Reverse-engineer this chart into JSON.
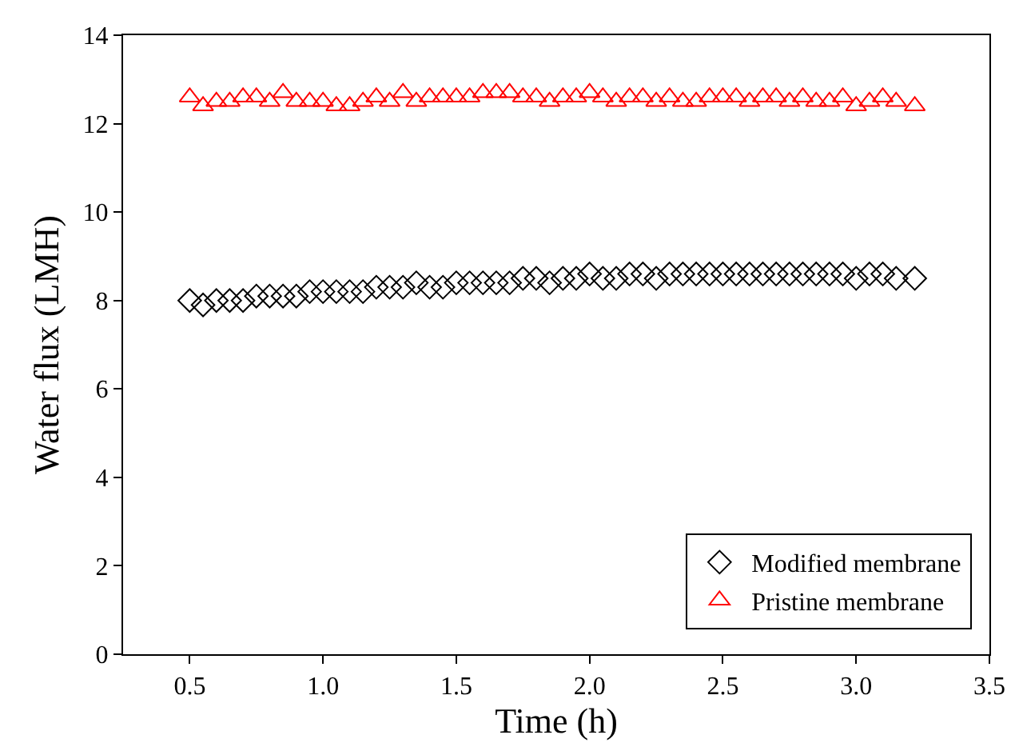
{
  "chart_data": {
    "type": "scatter",
    "xlabel": "Time (h)",
    "ylabel": "Water flux (LMH)",
    "x": [
      0.5,
      0.55,
      0.6,
      0.65,
      0.7,
      0.75,
      0.8,
      0.85,
      0.9,
      0.95,
      1.0,
      1.05,
      1.1,
      1.15,
      1.2,
      1.25,
      1.3,
      1.35,
      1.4,
      1.45,
      1.5,
      1.55,
      1.6,
      1.65,
      1.7,
      1.75,
      1.8,
      1.85,
      1.9,
      1.95,
      2.0,
      2.05,
      2.1,
      2.15,
      2.2,
      2.25,
      2.3,
      2.35,
      2.4,
      2.45,
      2.5,
      2.55,
      2.6,
      2.65,
      2.7,
      2.75,
      2.8,
      2.85,
      2.9,
      2.95,
      3.0,
      3.05,
      3.1,
      3.15,
      3.22
    ],
    "series": [
      {
        "name": "Modified membrane",
        "color": "#000000",
        "marker": "diamond",
        "values": [
          8.0,
          7.9,
          8.0,
          8.0,
          8.0,
          8.1,
          8.1,
          8.1,
          8.1,
          8.2,
          8.2,
          8.2,
          8.2,
          8.2,
          8.3,
          8.3,
          8.3,
          8.4,
          8.3,
          8.3,
          8.4,
          8.4,
          8.4,
          8.4,
          8.4,
          8.5,
          8.5,
          8.4,
          8.5,
          8.5,
          8.6,
          8.5,
          8.5,
          8.6,
          8.6,
          8.5,
          8.6,
          8.6,
          8.6,
          8.6,
          8.6,
          8.6,
          8.6,
          8.6,
          8.6,
          8.6,
          8.6,
          8.6,
          8.6,
          8.6,
          8.5,
          8.6,
          8.6,
          8.5,
          8.5
        ]
      },
      {
        "name": "Pristine membrane",
        "color": "#ff0000",
        "marker": "triangle",
        "values": [
          12.6,
          12.4,
          12.5,
          12.5,
          12.6,
          12.6,
          12.5,
          12.7,
          12.5,
          12.5,
          12.5,
          12.4,
          12.4,
          12.5,
          12.6,
          12.5,
          12.7,
          12.5,
          12.6,
          12.6,
          12.6,
          12.6,
          12.7,
          12.7,
          12.7,
          12.6,
          12.6,
          12.5,
          12.6,
          12.6,
          12.7,
          12.6,
          12.5,
          12.6,
          12.6,
          12.5,
          12.6,
          12.5,
          12.5,
          12.6,
          12.6,
          12.6,
          12.5,
          12.6,
          12.6,
          12.5,
          12.6,
          12.5,
          12.5,
          12.6,
          12.4,
          12.5,
          12.6,
          12.5,
          12.4
        ]
      }
    ],
    "xlim": [
      0.25,
      3.5
    ],
    "xticks": [
      {
        "value": 0.5,
        "label": "0.5"
      },
      {
        "value": 1,
        "label": "1.0"
      },
      {
        "value": 1.5,
        "label": "1.5"
      },
      {
        "value": 2,
        "label": "2.0"
      },
      {
        "value": 2.5,
        "label": "2.5"
      },
      {
        "value": 3,
        "label": "3.0"
      },
      {
        "value": 3.5,
        "label": "3.5"
      }
    ],
    "ylim": [
      0,
      14
    ],
    "yticks": [
      0,
      2,
      4,
      6,
      8,
      10,
      12,
      14
    ],
    "grid": false,
    "legend": "bottom right"
  }
}
